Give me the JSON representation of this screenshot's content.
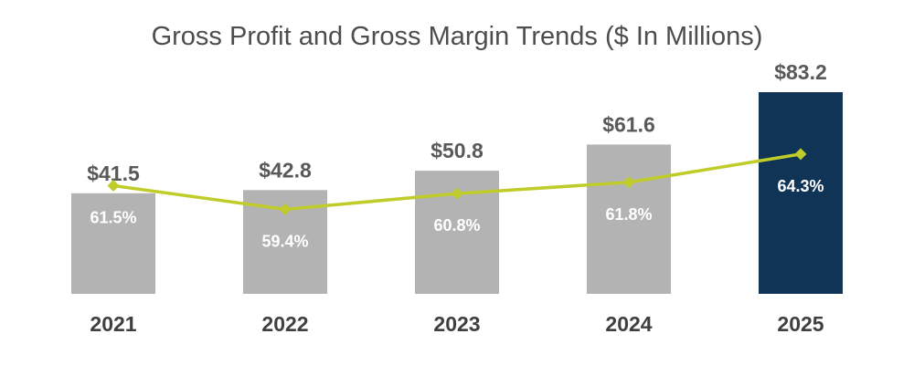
{
  "chart_data": {
    "type": "bar",
    "title": "Gross Profit and Gross Margin Trends ($ In Millions)",
    "categories": [
      "2021",
      "2022",
      "2023",
      "2024",
      "2025"
    ],
    "series": [
      {
        "name": "Gross Profit",
        "kind": "bar",
        "values": [
          41.5,
          42.8,
          50.8,
          61.6,
          83.2
        ],
        "labels": [
          "$41.5",
          "$42.8",
          "$50.8",
          "$61.6",
          "$83.2"
        ]
      },
      {
        "name": "Gross Margin",
        "kind": "line",
        "values": [
          61.5,
          59.4,
          60.8,
          61.8,
          64.3
        ],
        "labels": [
          "61.5%",
          "59.4%",
          "60.8%",
          "61.8%",
          "64.3%"
        ]
      }
    ],
    "highlight_category": "2025",
    "ylim_profit": [
      0,
      83.2
    ],
    "ylim_margin": [
      51.9,
      69.8
    ],
    "xlabel": "",
    "ylabel": "",
    "colors": {
      "bar": "#b3b3b3",
      "bar_highlight": "#0f3455",
      "line": "#bfcc2a",
      "value_text": "#595959",
      "category_text": "#3f3f3f",
      "title_text": "#4d4d4d"
    }
  }
}
